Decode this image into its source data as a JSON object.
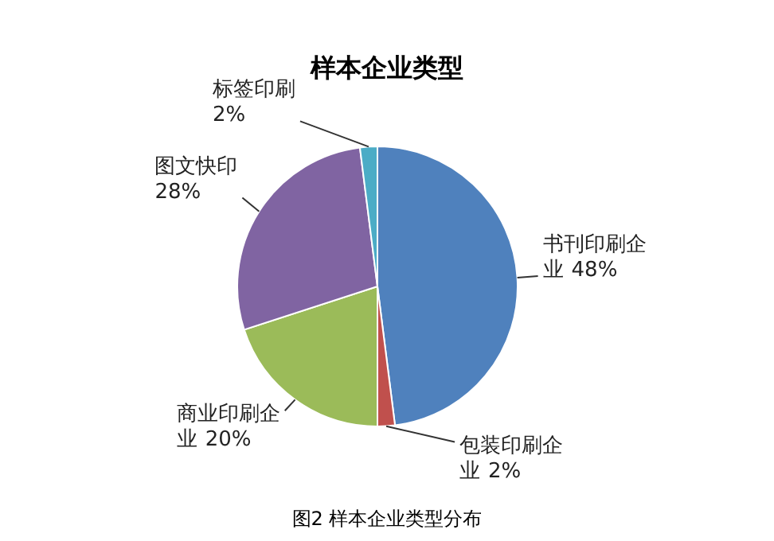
{
  "chart_data": {
    "type": "pie",
    "title": "样本企业类型",
    "categories": [
      "书刊印刷企业",
      "包装印刷企业",
      "商业印刷企业",
      "图文快印",
      "标签印刷"
    ],
    "values": [
      48,
      2,
      20,
      28,
      2
    ],
    "colors": [
      "#4f81bd",
      "#c0504d",
      "#9bbb59",
      "#8064a2",
      "#4bacc6"
    ],
    "value_labels": [
      "48%",
      "2%",
      "20%",
      "28%",
      "2%"
    ],
    "annotations": [
      "图2 样本企业类型分布"
    ]
  }
}
